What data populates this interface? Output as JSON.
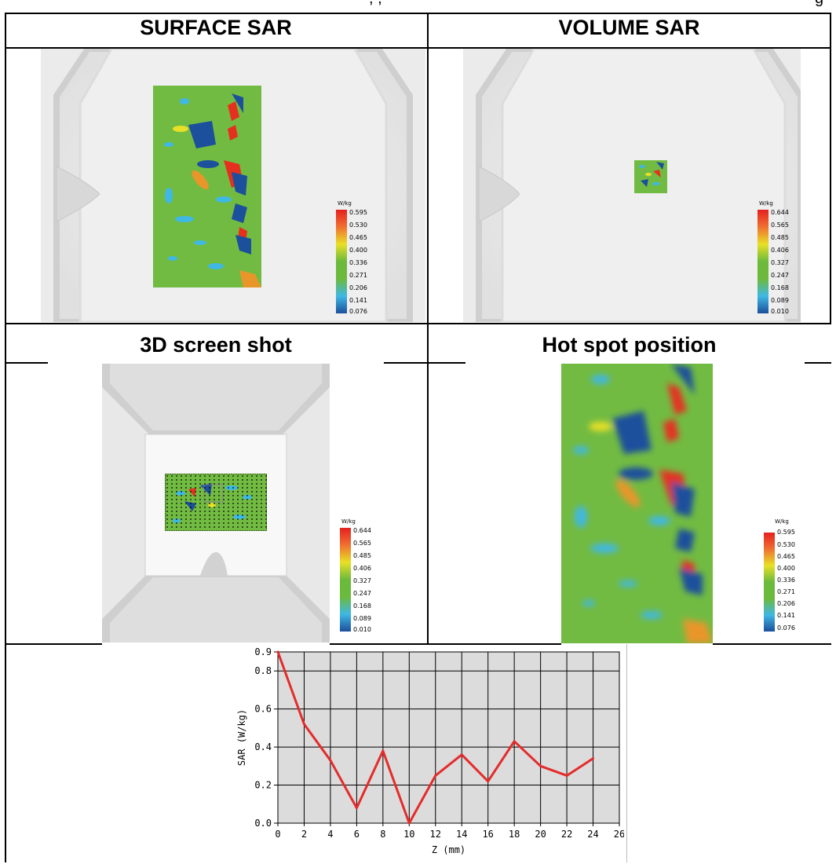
{
  "page_header_partial": ", , ",
  "page_header_tail": "g",
  "headers": {
    "surface": "SURFACE SAR",
    "volume": "VOLUME SAR",
    "screenshot3d": "3D screen shot",
    "hotspot": "Hot spot position"
  },
  "legends": {
    "surface": {
      "unit": "W/kg",
      "ticks": [
        "0.595",
        "0.530",
        "0.465",
        "0.400",
        "0.336",
        "0.271",
        "0.206",
        "0.141",
        "0.076"
      ]
    },
    "volume": {
      "unit": "W/kg",
      "ticks": [
        "0.644",
        "0.565",
        "0.485",
        "0.406",
        "0.327",
        "0.247",
        "0.168",
        "0.089",
        "0.010"
      ]
    },
    "screenshot3d": {
      "unit": "W/kg",
      "ticks": [
        "0.644",
        "0.565",
        "0.485",
        "0.406",
        "0.327",
        "0.247",
        "0.168",
        "0.089",
        "0.010"
      ]
    },
    "hotspot": {
      "unit": "W/kg",
      "ticks": [
        "0.595",
        "0.530",
        "0.465",
        "0.400",
        "0.336",
        "0.271",
        "0.206",
        "0.141",
        "0.076"
      ]
    }
  },
  "colors": {
    "sar_red": "#e53020",
    "sar_green": "#6cba3c",
    "sar_blue": "#1c4f9c",
    "sar_cyan": "#3fb8e4",
    "sar_yellow": "#e8e026"
  },
  "chart_data": {
    "type": "line",
    "xlabel": "Z (mm)",
    "ylabel": "SAR (W/kg)",
    "x": [
      0,
      2,
      4,
      6,
      8,
      10,
      12,
      14,
      16,
      18,
      20,
      22,
      24
    ],
    "y": [
      0.9,
      0.52,
      0.33,
      0.08,
      0.38,
      0.0,
      0.25,
      0.36,
      0.22,
      0.43,
      0.3,
      0.25,
      0.34
    ],
    "xticks": [
      "0",
      "2",
      "4",
      "6",
      "8",
      "10",
      "12",
      "14",
      "16",
      "18",
      "20",
      "22",
      "24",
      "26"
    ],
    "yticks": [
      "0.0",
      "0.2",
      "0.4",
      "0.6",
      "0.8",
      "0.9"
    ],
    "xlim": [
      0,
      26
    ],
    "ylim": [
      0,
      0.9
    ],
    "grid": true,
    "line_color": "#e52b2b"
  }
}
